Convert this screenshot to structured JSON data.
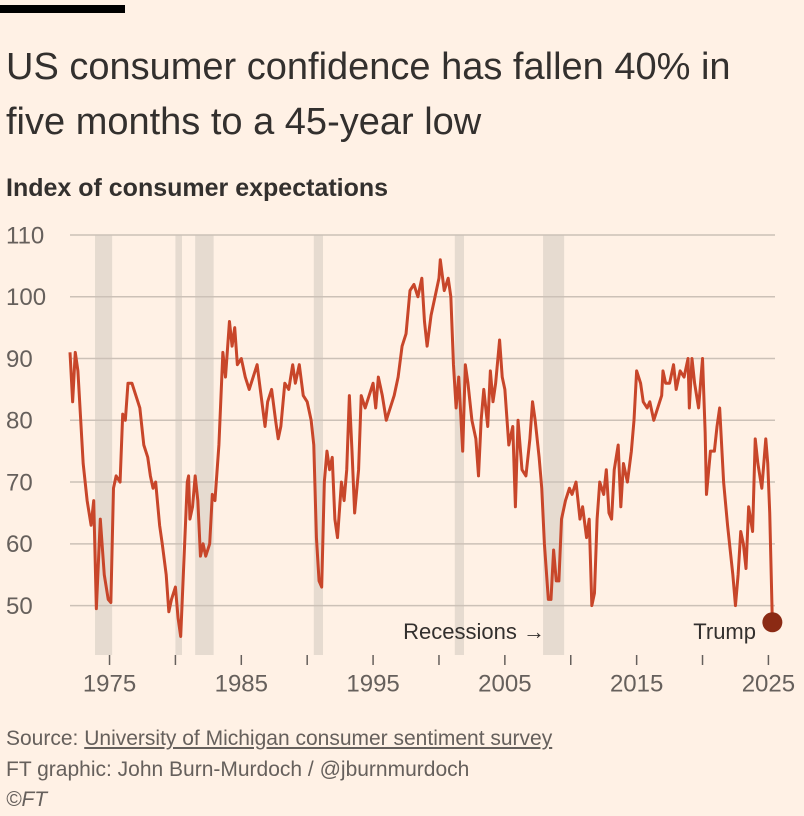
{
  "chart_data": {
    "type": "line",
    "title": "US consumer confidence has fallen 40% in five months to a 45-year low",
    "subtitle": "Index of consumer expectations",
    "series": [
      {
        "name": "Index of consumer expectations",
        "color": "#c8462a",
        "x": [
          1972.0,
          1972.2,
          1972.4,
          1972.6,
          1973.0,
          1973.3,
          1973.6,
          1973.8,
          1974.0,
          1974.3,
          1974.6,
          1974.9,
          1975.1,
          1975.3,
          1975.5,
          1975.8,
          1976.0,
          1976.2,
          1976.4,
          1976.7,
          1977.0,
          1977.3,
          1977.6,
          1977.9,
          1978.1,
          1978.3,
          1978.5,
          1978.8,
          1979.0,
          1979.3,
          1979.5,
          1979.7,
          1980.0,
          1980.2,
          1980.4,
          1980.6,
          1980.9,
          1981.0,
          1981.1,
          1981.3,
          1981.5,
          1981.7,
          1981.9,
          1982.1,
          1982.3,
          1982.6,
          1982.8,
          1983.0,
          1983.3,
          1983.6,
          1983.8,
          1984.1,
          1984.3,
          1984.5,
          1984.7,
          1985.0,
          1985.3,
          1985.6,
          1985.9,
          1986.2,
          1986.5,
          1986.8,
          1987.0,
          1987.3,
          1987.6,
          1987.8,
          1988.0,
          1988.3,
          1988.6,
          1988.9,
          1989.1,
          1989.4,
          1989.7,
          1990.0,
          1990.3,
          1990.5,
          1990.7,
          1990.9,
          1991.1,
          1991.3,
          1991.5,
          1991.7,
          1991.9,
          1992.1,
          1992.3,
          1992.6,
          1992.8,
          1993.0,
          1993.2,
          1993.4,
          1993.6,
          1993.9,
          1994.1,
          1994.4,
          1994.7,
          1995.0,
          1995.2,
          1995.4,
          1995.7,
          1996.0,
          1996.3,
          1996.6,
          1996.9,
          1997.2,
          1997.5,
          1997.8,
          1998.1,
          1998.4,
          1998.7,
          1998.9,
          1999.1,
          1999.4,
          1999.7,
          2000.0,
          2000.1,
          2000.4,
          2000.7,
          2000.9,
          2001.1,
          2001.3,
          2001.5,
          2001.8,
          2002.0,
          2002.2,
          2002.5,
          2002.8,
          2003.0,
          2003.2,
          2003.4,
          2003.7,
          2003.9,
          2004.1,
          2004.3,
          2004.6,
          2004.8,
          2005.0,
          2005.3,
          2005.6,
          2005.8,
          2006.0,
          2006.3,
          2006.6,
          2006.9,
          2007.1,
          2007.3,
          2007.6,
          2007.8,
          2008.0,
          2008.3,
          2008.5,
          2008.7,
          2008.9,
          2009.1,
          2009.3,
          2009.6,
          2009.9,
          2010.1,
          2010.4,
          2010.7,
          2010.9,
          2011.2,
          2011.4,
          2011.6,
          2011.8,
          2012.0,
          2012.2,
          2012.5,
          2012.7,
          2012.9,
          2013.1,
          2013.3,
          2013.6,
          2013.8,
          2014.0,
          2014.3,
          2014.6,
          2014.8,
          2015.0,
          2015.3,
          2015.5,
          2015.8,
          2016.0,
          2016.3,
          2016.6,
          2016.9,
          2017.0,
          2017.2,
          2017.5,
          2017.8,
          2018.0,
          2018.3,
          2018.6,
          2018.9,
          2019.0,
          2019.2,
          2019.4,
          2019.7,
          2020.0,
          2020.2,
          2020.3,
          2020.6,
          2020.9,
          2021.1,
          2021.3,
          2021.6,
          2021.9,
          2022.1,
          2022.3,
          2022.5,
          2022.7,
          2022.9,
          2023.1,
          2023.3,
          2023.5,
          2023.8,
          2024.0,
          2024.2,
          2024.5,
          2024.8,
          2024.95,
          2025.1,
          2025.3
        ],
        "values": [
          91,
          83,
          91,
          88,
          73,
          67,
          63,
          67,
          49.5,
          64,
          55,
          51,
          50.5,
          69,
          71,
          70,
          81,
          80,
          86,
          86,
          84,
          82,
          76,
          74,
          71,
          69,
          70,
          63,
          60,
          55,
          49,
          51,
          53,
          48,
          45,
          55,
          70,
          71,
          64,
          66,
          71,
          67,
          58,
          60,
          58,
          60,
          68,
          67,
          76,
          91,
          87,
          96,
          92,
          95,
          89,
          90,
          87,
          85,
          87,
          89,
          84,
          79,
          83,
          85,
          80,
          77,
          79,
          86,
          85,
          89,
          86,
          89,
          84,
          83,
          80,
          76,
          61,
          54,
          53,
          70,
          75,
          72,
          74,
          64,
          61,
          70,
          67,
          72,
          84,
          75,
          65,
          72,
          84,
          82,
          84,
          86,
          82,
          87,
          84,
          80,
          82,
          84,
          87,
          92,
          94,
          101,
          102,
          100,
          103,
          96,
          92,
          97,
          100,
          103,
          106,
          101,
          103,
          100,
          89,
          82,
          87,
          75,
          89,
          86,
          80,
          77,
          71,
          80,
          85,
          79,
          88,
          83,
          86,
          93,
          87,
          85,
          76,
          79,
          66,
          80,
          72,
          71,
          77,
          83,
          80,
          74,
          69,
          60,
          51,
          51,
          59,
          54,
          54,
          64,
          67,
          69,
          68,
          70,
          64,
          66,
          61,
          64,
          50,
          52,
          64,
          70,
          68,
          72,
          65,
          64,
          72,
          76,
          66,
          73,
          70,
          75,
          80,
          88,
          86,
          83,
          82,
          83,
          80,
          82,
          84,
          88,
          86,
          86,
          89,
          85,
          88,
          87,
          90,
          82,
          90,
          86,
          82,
          90,
          78,
          68,
          75,
          75,
          79,
          82,
          70,
          63,
          59,
          55,
          50,
          55,
          62,
          60,
          56,
          66,
          62,
          77,
          73,
          69,
          77,
          73,
          65,
          47.3
        ]
      }
    ],
    "recessions": [
      [
        1973.9,
        1975.2
      ],
      [
        1980.0,
        1980.5
      ],
      [
        1981.5,
        1982.9
      ],
      [
        1990.5,
        1991.2
      ],
      [
        2001.2,
        2001.9
      ],
      [
        2007.9,
        2009.5
      ]
    ],
    "xlim": [
      1972,
      2025.5
    ],
    "xticks": [
      1975,
      1985,
      1995,
      2005,
      2015,
      2025
    ],
    "xminor_ticks": [
      1980,
      1990,
      2000,
      2010,
      2020
    ],
    "ylim": [
      42,
      110
    ],
    "yticks": [
      50,
      60,
      70,
      80,
      90,
      100,
      110
    ],
    "grid": true,
    "annotations": [
      "Recessions →",
      "Trump"
    ],
    "source_label": "Source:",
    "source_link": "University of Michigan consumer sentiment survey",
    "credit": "FT graphic: John Burn-Murdoch / @jburnmurdoch",
    "copyright": "©FT"
  }
}
